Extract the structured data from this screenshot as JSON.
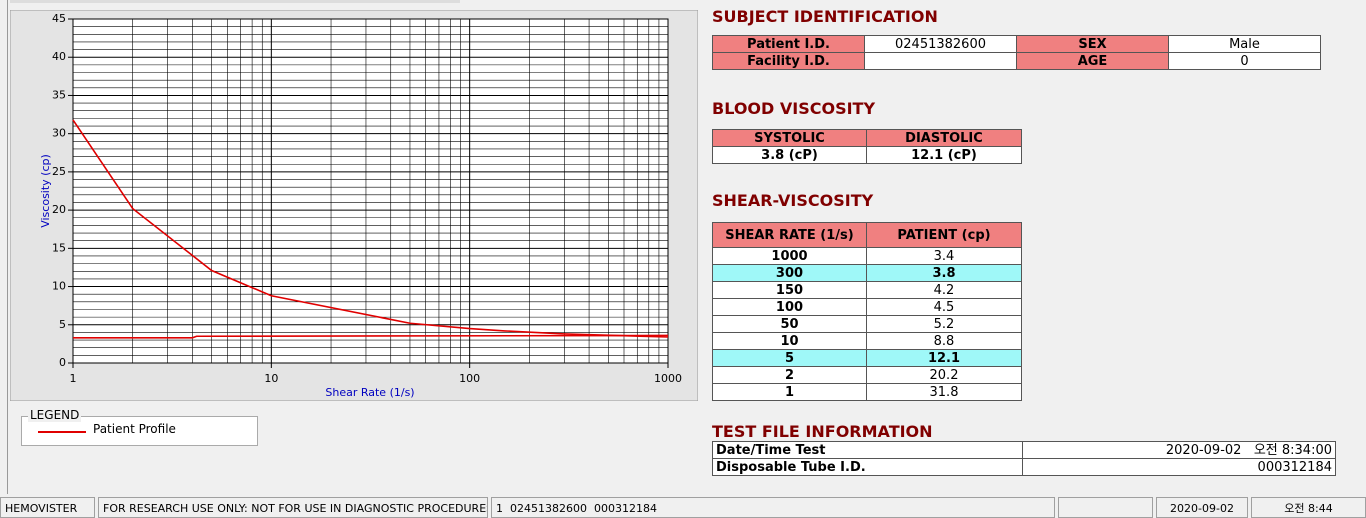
{
  "chart_data": {
    "type": "line",
    "xlabel": "Shear Rate (1/s)",
    "ylabel": "Viscosity (cp)",
    "xscale": "log",
    "xlim": [
      1,
      1000
    ],
    "xticks": [
      1,
      10,
      100,
      1000
    ],
    "minor_xticks": [
      2,
      3,
      4,
      5,
      6,
      7,
      8,
      9,
      20,
      30,
      40,
      50,
      60,
      70,
      80,
      90,
      200,
      300,
      400,
      500,
      600,
      700,
      800,
      900
    ],
    "ylim": [
      0,
      45
    ],
    "yticks": [
      0,
      5,
      10,
      15,
      20,
      25,
      30,
      35,
      40,
      45
    ],
    "minor_yticks": [
      1,
      2,
      3,
      4,
      6,
      7,
      8,
      9,
      11,
      12,
      13,
      14,
      16,
      17,
      18,
      19,
      21,
      22,
      23,
      24,
      26,
      27,
      28,
      29,
      31,
      32,
      33,
      34,
      36,
      37,
      38,
      39,
      41,
      42,
      43,
      44
    ],
    "grid": true,
    "series": [
      {
        "name": "Patient Profile",
        "color": "#e00000",
        "x": [
          1,
          2,
          5,
          10,
          50,
          100,
          150,
          300,
          1000
        ],
        "values": [
          31.8,
          20.2,
          12.1,
          8.8,
          5.2,
          4.5,
          4.2,
          3.8,
          3.4
        ]
      },
      {
        "color": "#e00000",
        "x": [
          1,
          4,
          4.2,
          1000
        ],
        "values": [
          3.3,
          3.3,
          3.5,
          3.6
        ]
      }
    ],
    "legend": {
      "title": "LEGEND"
    }
  },
  "subject": {
    "title": "SUBJECT IDENTIFICATION",
    "patient_id_label": "Patient I.D.",
    "patient_id": "02451382600",
    "sex_label": "SEX",
    "sex": "Male",
    "facility_label": "Facility I.D.",
    "age_label": "AGE",
    "age": 0
  },
  "blood": {
    "title": "BLOOD VISCOSITY",
    "headers": [
      "SYSTOLIC",
      "DIASTOLIC"
    ],
    "values": [
      "3.8 (cP)",
      "12.1 (cP)"
    ]
  },
  "shear": {
    "title": "SHEAR-VISCOSITY",
    "headers": [
      "SHEAR RATE (1/s)",
      "PATIENT (cp)"
    ],
    "highlight": [
      1,
      6
    ],
    "rows": [
      [
        1000,
        3.4
      ],
      [
        300,
        3.8
      ],
      [
        150,
        4.2
      ],
      [
        100,
        4.5
      ],
      [
        50,
        5.2
      ],
      [
        10,
        8.8
      ],
      [
        5,
        12.1
      ],
      [
        2,
        20.2
      ],
      [
        1,
        31.8
      ]
    ]
  },
  "test_file": {
    "title": "TEST FILE INFORMATION",
    "rows": [
      [
        "Date/Time Test",
        "2020-09-02   오전 8:34:00"
      ],
      [
        "Disposable Tube I.D.",
        "000312184"
      ]
    ]
  },
  "status": [
    "HEMOVISTER",
    "FOR RESEARCH USE ONLY: NOT FOR USE IN DIAGNOSTIC PROCEDURES",
    "1  02451382600  000312184",
    "2020-09-02",
    "오전 8:44"
  ]
}
